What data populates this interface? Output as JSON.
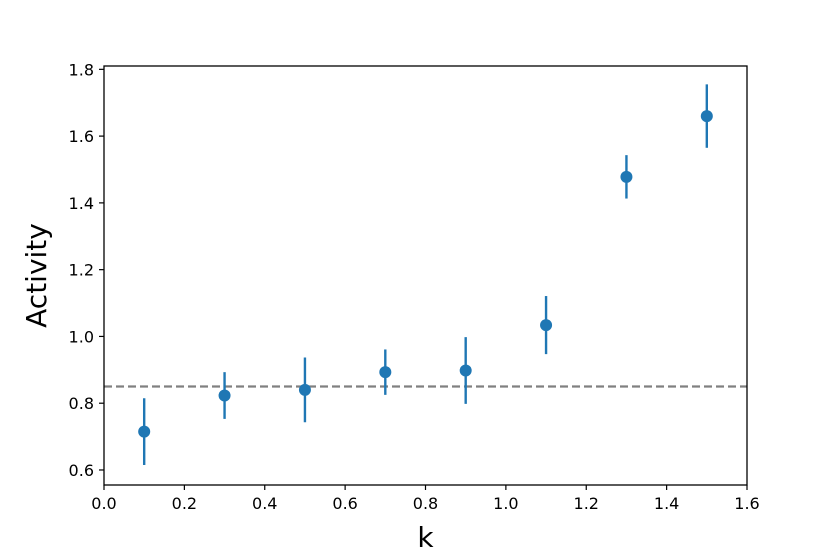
{
  "chart_data": {
    "type": "scatter",
    "title": "",
    "xlabel": "k",
    "ylabel": "Activity",
    "xlim": [
      0.0,
      1.6
    ],
    "ylim": [
      0.555,
      1.81
    ],
    "xticks": [
      0.0,
      0.2,
      0.4,
      0.6,
      0.8,
      1.0,
      1.2,
      1.4,
      1.6
    ],
    "xtick_labels": [
      "0.0",
      "0.2",
      "0.4",
      "0.6",
      "0.8",
      "1.0",
      "1.2",
      "1.4",
      "1.6"
    ],
    "yticks": [
      0.6,
      0.8,
      1.0,
      1.2,
      1.4,
      1.6,
      1.8
    ],
    "ytick_labels": [
      "0.6",
      "0.8",
      "1.0",
      "1.2",
      "1.4",
      "1.6",
      "1.8"
    ],
    "grid": false,
    "series": [
      {
        "x": [
          0.1,
          0.3,
          0.5,
          0.7,
          0.9,
          1.1,
          1.3,
          1.5
        ],
        "y": [
          0.715,
          0.823,
          0.84,
          0.893,
          0.898,
          1.034,
          1.478,
          1.66
        ],
        "yerr": [
          0.1,
          0.07,
          0.097,
          0.068,
          0.1,
          0.087,
          0.065,
          0.095
        ],
        "color": "#1f77b4"
      }
    ],
    "reference_line": {
      "y": 0.85,
      "style": "dashed",
      "color": "#808080"
    }
  }
}
